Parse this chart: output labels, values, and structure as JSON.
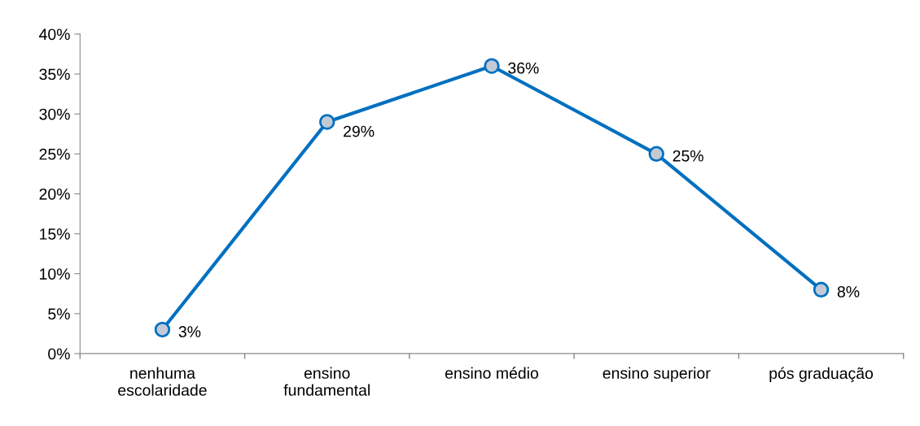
{
  "chart_data": {
    "type": "line",
    "categories": [
      "nenhuma\nescolaridade",
      "ensino\nfundamental",
      "ensino médio",
      "ensino superior",
      "pós graduação"
    ],
    "series": [
      {
        "color": "#0070c0",
        "values": [
          3,
          29,
          36,
          25,
          8
        ],
        "value_labels": [
          "3%",
          "29%",
          "36%",
          "25%",
          "8%"
        ]
      }
    ],
    "ylim": [
      0,
      40
    ],
    "yticks": [
      {
        "value": 0,
        "label": "0%"
      },
      {
        "value": 5,
        "label": "5%"
      },
      {
        "value": 10,
        "label": "10%"
      },
      {
        "value": 15,
        "label": "15%"
      },
      {
        "value": 20,
        "label": "20%"
      },
      {
        "value": 25,
        "label": "25%"
      },
      {
        "value": 30,
        "label": "30%"
      },
      {
        "value": 35,
        "label": "35%"
      },
      {
        "value": 40,
        "label": "40%"
      }
    ],
    "marker": "circle",
    "line_style": "solid",
    "grid": false
  }
}
